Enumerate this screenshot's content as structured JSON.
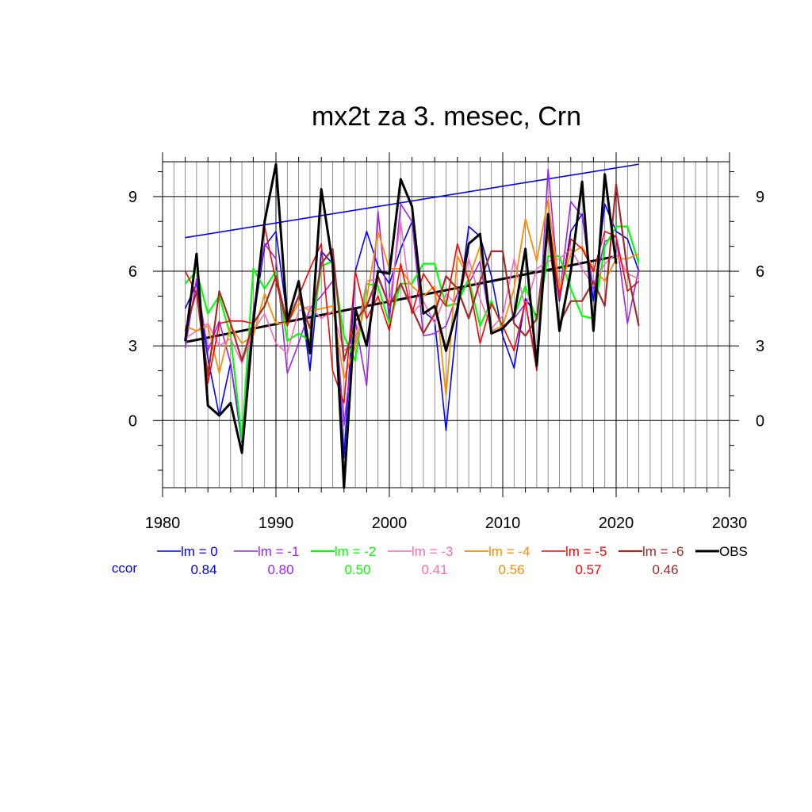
{
  "chart_data": {
    "type": "line",
    "title": "mx2t za 3. mesec, Crn",
    "xlabel": "",
    "ylabel": "",
    "xlim": [
      1980,
      2030
    ],
    "ylim": [
      -2.7,
      10.4
    ],
    "x_ticks": [
      1980,
      1990,
      2000,
      2010,
      2020,
      2030
    ],
    "y_ticks": [
      0,
      3,
      6,
      9
    ],
    "grid": true,
    "legend_position": "bottom",
    "ccor_label": "ccor",
    "years_model": [
      1982,
      1983,
      1984,
      1985,
      1986,
      1987,
      1988,
      1989,
      1990,
      1991,
      1992,
      1993,
      1994,
      1995,
      1996,
      1997,
      1998,
      1999,
      2000,
      2001,
      2002,
      2003,
      2004,
      2005,
      2006,
      2007,
      2008,
      2009,
      2010,
      2011,
      2012,
      2013,
      2014,
      2015,
      2016,
      2017,
      2018,
      2019,
      2020,
      2021,
      2022
    ],
    "years_obs": [
      1982,
      1983,
      1984,
      1985,
      1986,
      1987,
      1988,
      1989,
      1990,
      1991,
      1992,
      1993,
      1994,
      1995,
      1996,
      1997,
      1998,
      1999,
      2000,
      2001,
      2002,
      2003,
      2004,
      2005,
      2006,
      2007,
      2008,
      2009,
      2010,
      2011,
      2012,
      2013,
      2014,
      2015,
      2016,
      2017,
      2018,
      2019,
      2020
    ],
    "series": [
      {
        "name": "lm = 0",
        "color": "#0000ff",
        "width": 1.6,
        "ccor": "0.84",
        "values": [
          4.5,
          5.5,
          2.5,
          0.2,
          2.3,
          -0.9,
          4.0,
          7.0,
          7.6,
          4.1,
          5.6,
          2.0,
          6.8,
          6.3,
          -1.5,
          6.0,
          7.6,
          6.2,
          5.5,
          6.9,
          8.0,
          4.4,
          4.0,
          -0.4,
          4.2,
          7.8,
          7.4,
          5.8,
          3.4,
          2.1,
          4.9,
          4.2,
          7.9,
          4.8,
          7.6,
          8.3,
          4.8,
          8.7,
          7.6,
          7.3,
          6.0
        ]
      },
      {
        "name": "lm = -1",
        "color": "#a020f0",
        "width": 1.6,
        "ccor": "0.80",
        "values": [
          2.9,
          5.7,
          2.8,
          4.0,
          2.3,
          -0.7,
          4.4,
          7.1,
          6.5,
          1.9,
          3.1,
          4.5,
          5.0,
          5.6,
          -0.2,
          4.0,
          1.4,
          8.4,
          4.0,
          8.7,
          8.0,
          3.4,
          3.5,
          3.8,
          5.1,
          5.5,
          6.4,
          3.6,
          3.8,
          4.1,
          4.7,
          2.3,
          10.1,
          5.0,
          8.8,
          8.2,
          5.3,
          7.2,
          7.4,
          3.9,
          6.1
        ]
      },
      {
        "name": "lm = -2",
        "color": "#00ff00",
        "width": 2.2,
        "ccor": "0.50",
        "values": [
          5.5,
          6.0,
          4.3,
          5.0,
          3.4,
          -0.8,
          6.1,
          5.3,
          6.0,
          3.2,
          3.5,
          3.2,
          6.2,
          6.4,
          3.4,
          2.4,
          5.5,
          5.4,
          3.9,
          5.5,
          5.5,
          6.3,
          6.3,
          4.6,
          4.7,
          5.7,
          3.8,
          4.8,
          3.7,
          4.2,
          5.4,
          4.0,
          6.6,
          6.6,
          5.3,
          4.2,
          4.1,
          7.0,
          7.8,
          7.8,
          6.3
        ]
      },
      {
        "name": "lm = -3",
        "color": "#ff69b4",
        "width": 1.6,
        "ccor": "0.41",
        "values": [
          3.3,
          3.6,
          3.9,
          3.0,
          3.3,
          2.3,
          3.6,
          4.3,
          3.1,
          2.7,
          4.4,
          4.6,
          4.1,
          4.4,
          2.8,
          3.2,
          5.6,
          5.7,
          4.7,
          8.0,
          4.3,
          4.8,
          3.9,
          5.1,
          4.6,
          6.5,
          4.9,
          3.7,
          4.2,
          6.5,
          4.5,
          6.1,
          6.4,
          6.5,
          6.9,
          6.1,
          5.4,
          6.3,
          6.7,
          5.9,
          5.7
        ]
      },
      {
        "name": "lm = -4",
        "color": "#ff8c00",
        "width": 1.8,
        "ccor": "0.56",
        "values": [
          3.8,
          3.6,
          3.8,
          1.9,
          3.8,
          3.1,
          3.4,
          5.1,
          3.9,
          3.9,
          4.7,
          4.4,
          4.5,
          4.6,
          1.7,
          3.0,
          4.9,
          7.6,
          6.1,
          6.1,
          5.4,
          5.0,
          5.4,
          1.0,
          6.6,
          5.7,
          7.0,
          3.6,
          3.8,
          5.3,
          8.1,
          6.4,
          8.9,
          5.3,
          6.7,
          7.0,
          6.1,
          5.6,
          6.5,
          6.5,
          6.7
        ]
      },
      {
        "name": "lm = -5",
        "color": "#ff0000",
        "width": 1.6,
        "ccor": "0.57",
        "values": [
          6.0,
          5.1,
          1.5,
          3.9,
          4.0,
          4.0,
          3.9,
          7.8,
          5.6,
          3.8,
          5.0,
          6.1,
          7.1,
          2.0,
          0.7,
          6.0,
          4.1,
          5.0,
          3.6,
          6.3,
          4.3,
          5.9,
          5.2,
          4.6,
          7.1,
          5.6,
          3.1,
          4.7,
          3.8,
          2.8,
          4.8,
          2.0,
          8.3,
          4.9,
          7.3,
          6.9,
          6.0,
          7.6,
          7.4,
          5.2,
          5.6
        ]
      },
      {
        "name": "lm = -6",
        "color": "#a52a2a",
        "width": 2.2,
        "ccor": "0.46",
        "values": [
          3.6,
          5.2,
          1.8,
          5.2,
          3.9,
          2.4,
          3.9,
          4.6,
          5.8,
          3.9,
          5.0,
          3.7,
          6.3,
          6.9,
          2.4,
          4.0,
          4.6,
          5.8,
          4.6,
          5.5,
          4.5,
          3.5,
          4.3,
          5.8,
          5.3,
          4.1,
          5.6,
          6.8,
          6.8,
          3.9,
          3.4,
          4.1,
          7.6,
          3.9,
          4.8,
          4.8,
          5.6,
          4.6,
          9.5,
          6.0,
          3.8
        ]
      },
      {
        "name": "OBS",
        "color": "#000000",
        "width": 3.0,
        "obs": true,
        "values": [
          3.2,
          6.7,
          0.6,
          0.2,
          0.7,
          -1.3,
          3.9,
          8.0,
          10.3,
          4.0,
          5.6,
          2.7,
          9.3,
          6.3,
          -2.7,
          4.5,
          3.0,
          6.0,
          5.9,
          9.7,
          8.6,
          4.3,
          4.6,
          2.8,
          4.5,
          7.1,
          7.5,
          3.5,
          3.7,
          4.2,
          6.9,
          2.2,
          8.3,
          3.6,
          6.0,
          9.6,
          3.6,
          9.9,
          6.3
        ]
      }
    ],
    "trend_lines": [
      {
        "name": "lm = 0 trend",
        "color": "#0000ff",
        "width": 1.6,
        "x": [
          1982,
          2022
        ],
        "y": [
          7.35,
          10.3
        ]
      },
      {
        "name": "OBS trend",
        "color": "#000000",
        "width": 3.0,
        "x": [
          1982,
          2020
        ],
        "y": [
          3.15,
          6.6
        ]
      }
    ]
  }
}
